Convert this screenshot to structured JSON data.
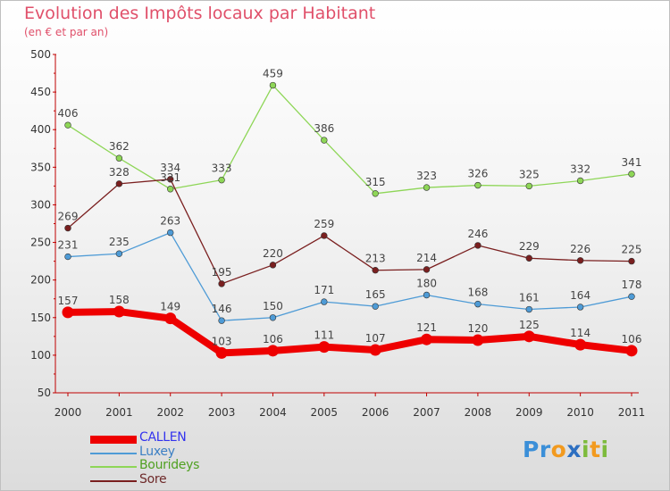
{
  "header": {
    "title": "Evolution des Impôts locaux par Habitant",
    "subtitle": "(en € et par an)"
  },
  "brand": {
    "letters": [
      {
        "ch": "P",
        "color": "#3b8fd8"
      },
      {
        "ch": "r",
        "color": "#3b8fd8"
      },
      {
        "ch": "o",
        "color": "#f29a1f"
      },
      {
        "ch": "x",
        "color": "#2d6fc1"
      },
      {
        "ch": "i",
        "color": "#7dbb3c"
      },
      {
        "ch": "t",
        "color": "#f29a1f"
      },
      {
        "ch": "i",
        "color": "#7dbb3c"
      }
    ]
  },
  "chart_data": {
    "type": "line",
    "title": "Evolution des Impôts locaux par Habitant",
    "subtitle": "(en € et par an)",
    "x": [
      "2000",
      "2001",
      "2002",
      "2003",
      "2004",
      "2005",
      "2006",
      "2007",
      "2008",
      "2009",
      "2010",
      "2011"
    ],
    "ylim": [
      50,
      500
    ],
    "yticks": [
      50,
      100,
      150,
      200,
      250,
      300,
      350,
      400,
      450,
      500
    ],
    "grid": false,
    "legend_position": "bottom-left",
    "series": [
      {
        "name": "CALLEN",
        "color": "#ee0000",
        "label_color": "#3333ee",
        "bold": true,
        "values": [
          157,
          158,
          149,
          103,
          106,
          111,
          107,
          121,
          120,
          125,
          114,
          106
        ]
      },
      {
        "name": "Luxey",
        "color": "#4e9bd6",
        "label_color": "#3b7fc4",
        "bold": false,
        "values": [
          231,
          235,
          263,
          146,
          150,
          171,
          165,
          180,
          168,
          161,
          164,
          178
        ]
      },
      {
        "name": "Bourideys",
        "color": "#8ed657",
        "label_color": "#4fa020",
        "bold": false,
        "values": [
          406,
          362,
          321,
          333,
          459,
          386,
          315,
          323,
          326,
          325,
          332,
          341
        ]
      },
      {
        "name": "Sore",
        "color": "#7a1f1f",
        "label_color": "#6e2a2a",
        "bold": false,
        "values": [
          269,
          328,
          334,
          195,
          220,
          259,
          213,
          214,
          246,
          229,
          226,
          225
        ]
      }
    ]
  }
}
